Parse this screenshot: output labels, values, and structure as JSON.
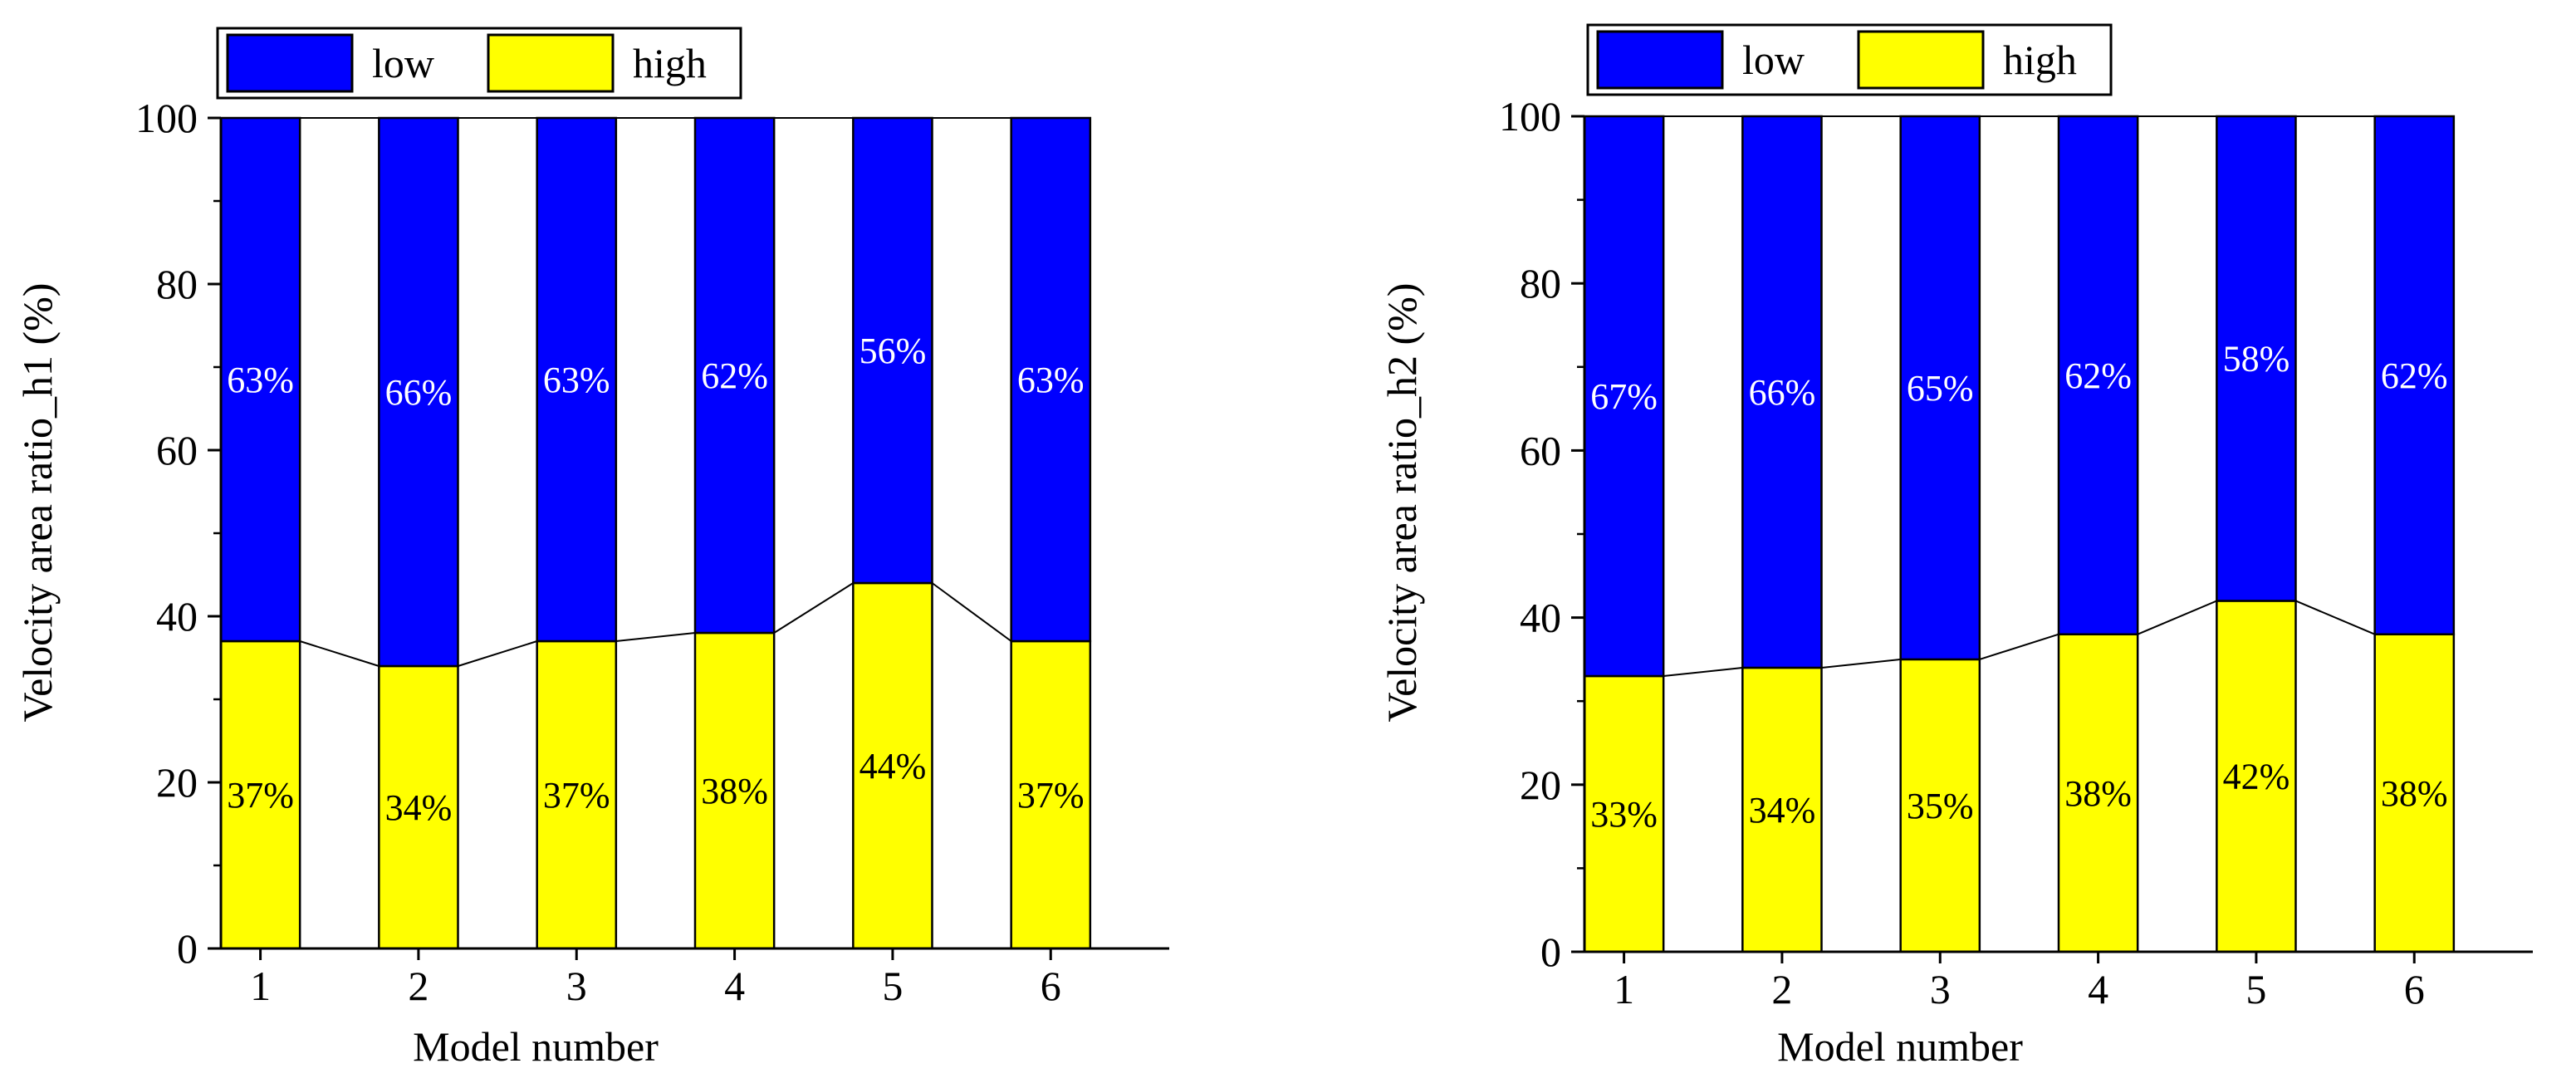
{
  "chart_data": [
    {
      "type": "bar",
      "stacked": true,
      "percent": true,
      "categories": [
        "1",
        "2",
        "3",
        "4",
        "5",
        "6"
      ],
      "series": [
        {
          "name": "low",
          "color": "#0000ff",
          "values": [
            63,
            66,
            63,
            62,
            56,
            63
          ]
        },
        {
          "name": "high",
          "color": "#ffff00",
          "values": [
            37,
            34,
            37,
            38,
            44,
            37
          ]
        }
      ],
      "data_labels": {
        "low": [
          "63%",
          "66%",
          "63%",
          "62%",
          "56%",
          "63%"
        ],
        "high": [
          "37%",
          "34%",
          "37%",
          "38%",
          "44%",
          "37%"
        ]
      },
      "xlabel": "Model number",
      "ylabel": "Velocity area ratio_h1 (%)",
      "ylim": [
        0,
        100
      ],
      "yticks": [
        "0",
        "20",
        "40",
        "60",
        "80",
        "100"
      ],
      "legend": {
        "items": [
          "low",
          "high"
        ],
        "placement": "top"
      },
      "connector_lines": true
    },
    {
      "type": "bar",
      "stacked": true,
      "percent": true,
      "categories": [
        "1",
        "2",
        "3",
        "4",
        "5",
        "6"
      ],
      "series": [
        {
          "name": "low",
          "color": "#0000ff",
          "values": [
            67,
            66,
            65,
            62,
            58,
            62
          ]
        },
        {
          "name": "high",
          "color": "#ffff00",
          "values": [
            33,
            34,
            35,
            38,
            42,
            38
          ]
        }
      ],
      "data_labels": {
        "low": [
          "67%",
          "66%",
          "65%",
          "62%",
          "58%",
          "62%"
        ],
        "high": [
          "33%",
          "34%",
          "35%",
          "38%",
          "42%",
          "38%"
        ]
      },
      "xlabel": "Model number",
      "ylabel": "Velocity area ratio_h2 (%)",
      "ylim": [
        0,
        100
      ],
      "yticks": [
        "0",
        "20",
        "40",
        "60",
        "80",
        "100"
      ],
      "legend": {
        "items": [
          "low",
          "high"
        ],
        "placement": "top"
      },
      "connector_lines": true
    }
  ]
}
